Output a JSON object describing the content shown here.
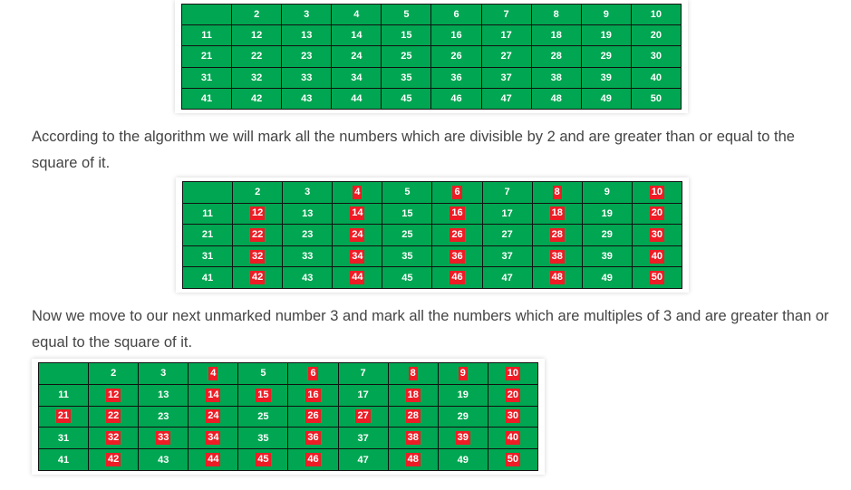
{
  "table1": {
    "rows": [
      [
        "",
        "2",
        "3",
        "4",
        "5",
        "6",
        "7",
        "8",
        "9",
        "10"
      ],
      [
        "11",
        "12",
        "13",
        "14",
        "15",
        "16",
        "17",
        "18",
        "19",
        "20"
      ],
      [
        "21",
        "22",
        "23",
        "24",
        "25",
        "26",
        "27",
        "28",
        "29",
        "30"
      ],
      [
        "31",
        "32",
        "33",
        "34",
        "35",
        "36",
        "37",
        "38",
        "39",
        "40"
      ],
      [
        "41",
        "42",
        "43",
        "44",
        "45",
        "46",
        "47",
        "48",
        "49",
        "50"
      ]
    ],
    "marked": []
  },
  "paragraph1": "According to the algorithm we will mark all the numbers which are divisible by 2 and are greater than or equal to the square of it.",
  "table2": {
    "rows": [
      [
        "",
        "2",
        "3",
        "4",
        "5",
        "6",
        "7",
        "8",
        "9",
        "10"
      ],
      [
        "11",
        "12",
        "13",
        "14",
        "15",
        "16",
        "17",
        "18",
        "19",
        "20"
      ],
      [
        "21",
        "22",
        "23",
        "24",
        "25",
        "26",
        "27",
        "28",
        "29",
        "30"
      ],
      [
        "31",
        "32",
        "33",
        "34",
        "35",
        "36",
        "37",
        "38",
        "39",
        "40"
      ],
      [
        "41",
        "42",
        "43",
        "44",
        "45",
        "46",
        "47",
        "48",
        "49",
        "50"
      ]
    ],
    "marked": [
      "4",
      "6",
      "8",
      "10",
      "12",
      "14",
      "16",
      "18",
      "20",
      "22",
      "24",
      "26",
      "28",
      "30",
      "32",
      "34",
      "36",
      "38",
      "40",
      "42",
      "44",
      "46",
      "48",
      "50"
    ]
  },
  "paragraph2": "Now we move to our next unmarked number 3 and mark all the numbers which are multiples of 3 and are greater than or equal to the square of it.",
  "table3": {
    "rows": [
      [
        "",
        "2",
        "3",
        "4",
        "5",
        "6",
        "7",
        "8",
        "9",
        "10"
      ],
      [
        "11",
        "12",
        "13",
        "14",
        "15",
        "16",
        "17",
        "18",
        "19",
        "20"
      ],
      [
        "21",
        "22",
        "23",
        "24",
        "25",
        "26",
        "27",
        "28",
        "29",
        "30"
      ],
      [
        "31",
        "32",
        "33",
        "34",
        "35",
        "36",
        "37",
        "38",
        "39",
        "40"
      ],
      [
        "41",
        "42",
        "43",
        "44",
        "45",
        "46",
        "47",
        "48",
        "49",
        "50"
      ]
    ],
    "marked": [
      "4",
      "6",
      "8",
      "9",
      "10",
      "12",
      "14",
      "15",
      "16",
      "18",
      "20",
      "21",
      "22",
      "24",
      "26",
      "27",
      "28",
      "30",
      "32",
      "33",
      "34",
      "36",
      "38",
      "39",
      "40",
      "42",
      "44",
      "45",
      "46",
      "48",
      "50"
    ]
  },
  "colors": {
    "cell_background": "#00a651",
    "marked_background": "#ee1c25",
    "text": "#ffffff",
    "border": "#111111",
    "paragraph_text": "#444444"
  }
}
